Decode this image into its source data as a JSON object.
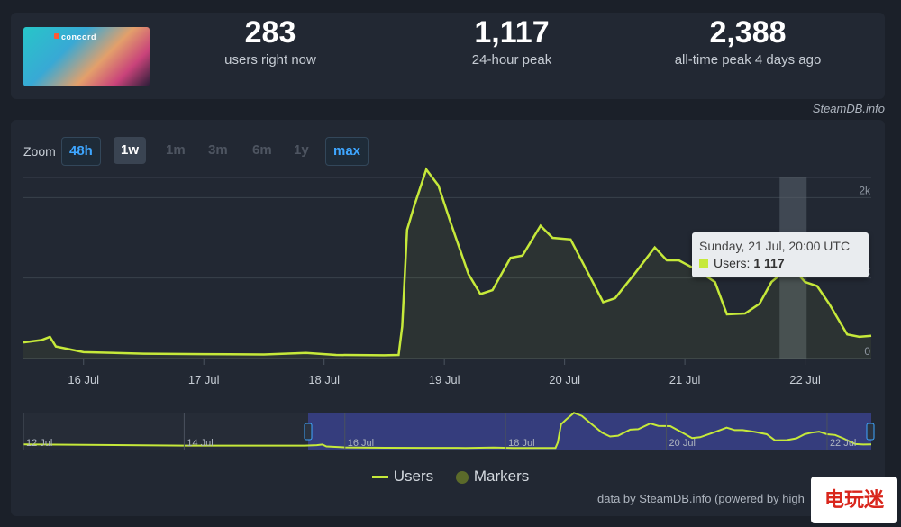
{
  "header": {
    "game_logo_text": "concord",
    "stats": [
      {
        "value": "283",
        "label": "users right now"
      },
      {
        "value": "1,117",
        "label": "24-hour peak"
      },
      {
        "value": "2,388",
        "label": "all-time peak 4 days ago"
      }
    ],
    "credit": "SteamDB.info"
  },
  "zoom": {
    "label": "Zoom",
    "buttons": [
      "48h",
      "1w",
      "1m",
      "3m",
      "6m",
      "1y",
      "max"
    ]
  },
  "tooltip": {
    "date": "Sunday, 21 Jul, 20:00 UTC",
    "series_label": "Users:",
    "value": "1 117"
  },
  "legend": [
    "Users",
    "Markers"
  ],
  "footer_credit": "data by SteamDB.info (powered by high",
  "watermark": "电玩迷",
  "colors": {
    "line": "#c6e93a",
    "accent": "#3ea6ff",
    "background": "#1b2029",
    "panel": "#222833"
  },
  "chart_data": {
    "type": "line",
    "title": "",
    "xlabel": "",
    "ylabel": "",
    "x_tick_labels": [
      "16 Jul",
      "17 Jul",
      "18 Jul",
      "19 Jul",
      "20 Jul",
      "21 Jul",
      "22 Jul"
    ],
    "y_tick_labels": [
      "0",
      "1k",
      "2k"
    ],
    "ylim": [
      0,
      2250
    ],
    "xlim_days": [
      15.5,
      22.55
    ],
    "grid": true,
    "series": [
      {
        "name": "Users",
        "points": [
          [
            15.5,
            200
          ],
          [
            15.65,
            230
          ],
          [
            15.72,
            270
          ],
          [
            15.77,
            150
          ],
          [
            16.0,
            80
          ],
          [
            16.5,
            60
          ],
          [
            17.0,
            55
          ],
          [
            17.5,
            50
          ],
          [
            17.85,
            70
          ],
          [
            18.1,
            45
          ],
          [
            18.5,
            40
          ],
          [
            18.62,
            45
          ],
          [
            18.65,
            400
          ],
          [
            18.69,
            1600
          ],
          [
            18.75,
            1900
          ],
          [
            18.85,
            2350
          ],
          [
            18.95,
            2150
          ],
          [
            19.05,
            1700
          ],
          [
            19.2,
            1050
          ],
          [
            19.3,
            800
          ],
          [
            19.4,
            850
          ],
          [
            19.55,
            1250
          ],
          [
            19.65,
            1280
          ],
          [
            19.8,
            1650
          ],
          [
            19.9,
            1500
          ],
          [
            20.05,
            1480
          ],
          [
            20.2,
            1050
          ],
          [
            20.32,
            700
          ],
          [
            20.42,
            750
          ],
          [
            20.58,
            1050
          ],
          [
            20.75,
            1380
          ],
          [
            20.85,
            1220
          ],
          [
            20.95,
            1220
          ],
          [
            21.1,
            1100
          ],
          [
            21.25,
            950
          ],
          [
            21.35,
            550
          ],
          [
            21.5,
            560
          ],
          [
            21.62,
            680
          ],
          [
            21.72,
            950
          ],
          [
            21.8,
            1050
          ],
          [
            21.9,
            1117
          ],
          [
            22.0,
            950
          ],
          [
            22.1,
            900
          ],
          [
            22.2,
            680
          ],
          [
            22.35,
            300
          ],
          [
            22.45,
            270
          ],
          [
            22.55,
            283
          ]
        ]
      }
    ],
    "navigator_tick_labels": [
      "12 Jul",
      "14 Jul",
      "16 Jul",
      "18 Jul",
      "20 Jul",
      "22 Jul"
    ]
  }
}
